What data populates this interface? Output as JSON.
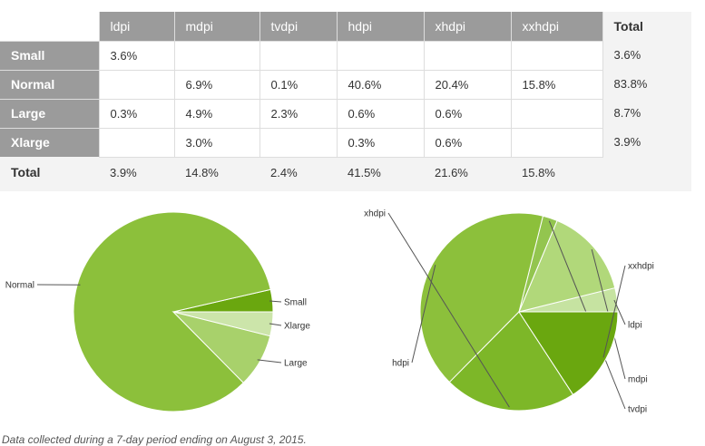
{
  "table": {
    "columns": [
      "ldpi",
      "mdpi",
      "tvdpi",
      "hdpi",
      "xhdpi",
      "xxhdpi"
    ],
    "total_label": "Total",
    "rows": [
      {
        "label": "Small",
        "cells": [
          "3.6%",
          "",
          "",
          "",
          "",
          ""
        ],
        "total": "3.6%"
      },
      {
        "label": "Normal",
        "cells": [
          "",
          "6.9%",
          "0.1%",
          "40.6%",
          "20.4%",
          "15.8%"
        ],
        "total": "83.8%"
      },
      {
        "label": "Large",
        "cells": [
          "0.3%",
          "4.9%",
          "2.3%",
          "0.6%",
          "0.6%",
          ""
        ],
        "total": "8.7%"
      },
      {
        "label": "Xlarge",
        "cells": [
          "",
          "3.0%",
          "",
          "0.3%",
          "0.6%",
          ""
        ],
        "total": "3.9%"
      }
    ],
    "totals": [
      "3.9%",
      "14.8%",
      "2.4%",
      "41.5%",
      "21.6%",
      "15.8%"
    ]
  },
  "chart_data": [
    {
      "type": "pie",
      "labels": [
        "Small",
        "Normal",
        "Large",
        "Xlarge"
      ],
      "values": [
        3.6,
        83.8,
        8.7,
        3.9
      ],
      "colors": [
        "#6aa70f",
        "#8cc03b",
        "#a8d16b",
        "#cce5aa"
      ]
    },
    {
      "type": "pie",
      "labels": [
        "ldpi",
        "mdpi",
        "tvdpi",
        "hdpi",
        "xhdpi",
        "xxhdpi"
      ],
      "values": [
        3.9,
        14.8,
        2.4,
        41.5,
        21.6,
        15.8
      ],
      "colors": [
        "#c6e3a1",
        "#b1d87a",
        "#93c54f",
        "#8cc03b",
        "#7db728",
        "#6aa70f"
      ]
    }
  ],
  "footnote": "Data collected during a 7-day period ending on August 3, 2015."
}
